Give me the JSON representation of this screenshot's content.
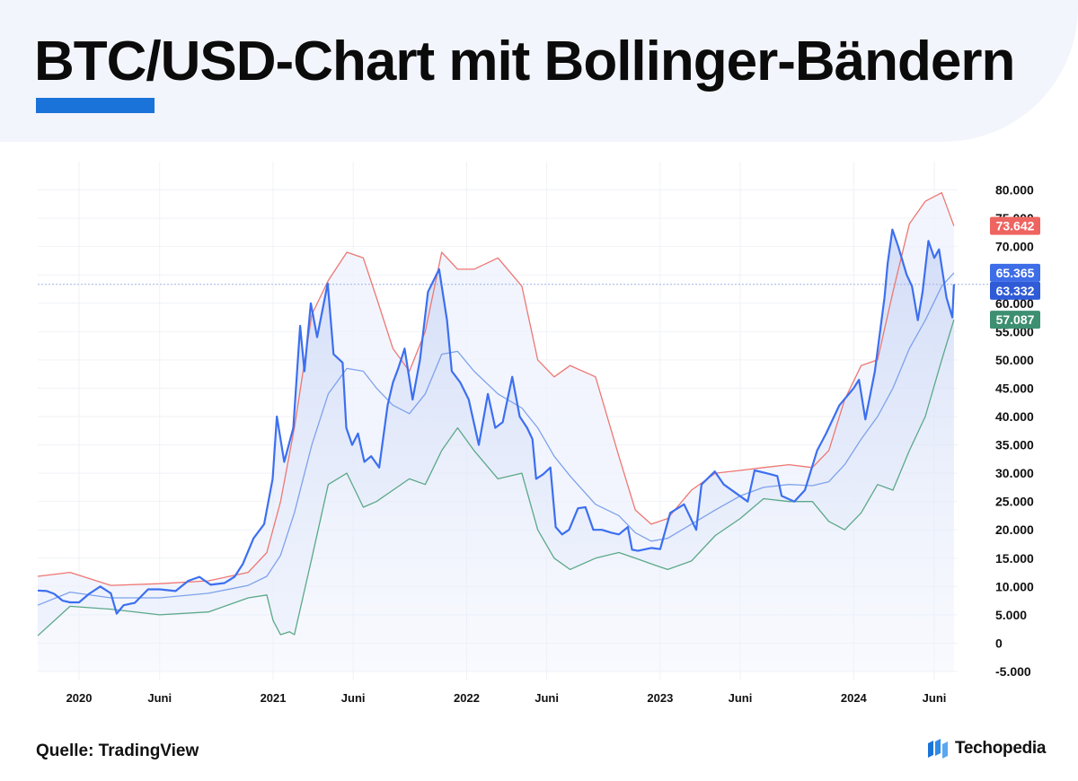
{
  "header": {
    "title": "BTC/USD-Chart mit Bollinger-Bändern",
    "accent_color": "#1a73d9"
  },
  "footer": {
    "source": "Quelle: TradingView",
    "brand": "Techopedia",
    "brand_icon": "techopedia-logo-icon"
  },
  "chart_data": {
    "type": "line",
    "ylim": [
      -5000,
      85000
    ],
    "yticks": [
      -5000,
      0,
      5000,
      10000,
      15000,
      20000,
      25000,
      30000,
      35000,
      40000,
      45000,
      50000,
      55000,
      60000,
      65000,
      70000,
      75000,
      80000
    ],
    "ytick_labels": [
      "-5.000",
      "0",
      "5.000",
      "10.000",
      "15.000",
      "20.000",
      "25.000",
      "30.000",
      "35.000",
      "40.000",
      "45.000",
      "50.000",
      "55.000",
      "60.000",
      "65.000",
      "70.000",
      "75.000",
      "80.000"
    ],
    "xlim": [
      "2019-10-15",
      "2024-07-15"
    ],
    "xticks": [
      {
        "date": "2020-01-01",
        "label": "2020"
      },
      {
        "date": "2020-06-01",
        "label": "Juni"
      },
      {
        "date": "2021-01-01",
        "label": "2021"
      },
      {
        "date": "2021-06-01",
        "label": "Juni"
      },
      {
        "date": "2022-01-01",
        "label": "2022"
      },
      {
        "date": "2022-06-01",
        "label": "Juni"
      },
      {
        "date": "2023-01-01",
        "label": "2023"
      },
      {
        "date": "2023-06-01",
        "label": "Juni"
      },
      {
        "date": "2024-01-01",
        "label": "2024"
      },
      {
        "date": "2024-06-01",
        "label": "Juni"
      }
    ],
    "grid": true,
    "series": [
      {
        "key": "upper",
        "color": "#ee7773",
        "x": [
          "2019-10-15",
          "2019-12-15",
          "2020-03-01",
          "2020-06-01",
          "2020-09-01",
          "2020-11-15",
          "2020-12-20",
          "2021-01-15",
          "2021-02-10",
          "2021-03-15",
          "2021-04-15",
          "2021-05-20",
          "2021-06-20",
          "2021-07-15",
          "2021-08-15",
          "2021-09-15",
          "2021-10-15",
          "2021-11-15",
          "2021-12-15",
          "2022-01-15",
          "2022-03-01",
          "2022-04-15",
          "2022-05-15",
          "2022-06-15",
          "2022-07-15",
          "2022-09-01",
          "2022-10-15",
          "2022-11-15",
          "2022-12-15",
          "2023-01-15",
          "2023-03-01",
          "2023-04-15",
          "2023-06-01",
          "2023-07-15",
          "2023-09-01",
          "2023-10-15",
          "2023-11-15",
          "2023-12-15",
          "2024-01-15",
          "2024-02-15",
          "2024-03-15",
          "2024-04-15",
          "2024-05-15",
          "2024-06-15",
          "2024-07-08"
        ],
        "y": [
          11800,
          12500,
          10200,
          10500,
          11000,
          12500,
          16000,
          25000,
          38000,
          58000,
          64000,
          69000,
          68000,
          61000,
          52000,
          48000,
          55000,
          69000,
          66000,
          66000,
          68000,
          63000,
          50000,
          47000,
          49000,
          47000,
          33000,
          23500,
          21000,
          22000,
          27000,
          30000,
          30500,
          31000,
          31500,
          31000,
          34000,
          43000,
          49000,
          50000,
          62000,
          74000,
          78000,
          79500,
          73642
        ]
      },
      {
        "key": "middle",
        "color": "#7ea2ec",
        "x": [
          "2019-10-15",
          "2019-12-15",
          "2020-03-01",
          "2020-06-01",
          "2020-09-01",
          "2020-11-15",
          "2020-12-20",
          "2021-01-15",
          "2021-02-10",
          "2021-03-15",
          "2021-04-15",
          "2021-05-20",
          "2021-06-20",
          "2021-07-15",
          "2021-08-15",
          "2021-09-15",
          "2021-10-15",
          "2021-11-15",
          "2021-12-15",
          "2022-01-15",
          "2022-03-01",
          "2022-04-15",
          "2022-05-15",
          "2022-06-15",
          "2022-07-15",
          "2022-09-01",
          "2022-10-15",
          "2022-11-15",
          "2022-12-15",
          "2023-01-15",
          "2023-03-01",
          "2023-04-15",
          "2023-06-01",
          "2023-07-15",
          "2023-09-01",
          "2023-10-15",
          "2023-11-15",
          "2023-12-15",
          "2024-01-15",
          "2024-02-15",
          "2024-03-15",
          "2024-04-15",
          "2024-05-15",
          "2024-06-15",
          "2024-07-08"
        ],
        "y": [
          6700,
          9000,
          8000,
          8000,
          8800,
          10200,
          11800,
          15500,
          23000,
          35000,
          44000,
          48500,
          48000,
          45000,
          42000,
          40500,
          44000,
          51000,
          51500,
          48000,
          44000,
          41500,
          38000,
          33000,
          29500,
          24500,
          22500,
          19500,
          18000,
          18500,
          21000,
          23500,
          26000,
          27500,
          28000,
          27800,
          28500,
          31500,
          36000,
          40000,
          45000,
          52000,
          57000,
          63000,
          65365
        ]
      },
      {
        "key": "lower",
        "color": "#5ba888",
        "x": [
          "2019-10-15",
          "2019-12-15",
          "2020-03-01",
          "2020-06-01",
          "2020-09-01",
          "2020-11-15",
          "2020-12-20",
          "2021-01-01",
          "2021-01-15",
          "2021-02-01",
          "2021-02-10",
          "2021-03-15",
          "2021-04-15",
          "2021-05-20",
          "2021-06-20",
          "2021-07-15",
          "2021-08-15",
          "2021-09-15",
          "2021-10-15",
          "2021-11-15",
          "2021-12-15",
          "2022-01-15",
          "2022-03-01",
          "2022-04-15",
          "2022-05-15",
          "2022-06-15",
          "2022-07-15",
          "2022-09-01",
          "2022-10-15",
          "2022-11-15",
          "2022-12-15",
          "2023-01-15",
          "2023-03-01",
          "2023-04-15",
          "2023-06-01",
          "2023-07-15",
          "2023-09-01",
          "2023-10-15",
          "2023-11-15",
          "2023-12-15",
          "2024-01-15",
          "2024-02-15",
          "2024-03-15",
          "2024-04-15",
          "2024-05-15",
          "2024-06-15",
          "2024-07-08"
        ],
        "y": [
          1300,
          6500,
          6000,
          5000,
          5500,
          8000,
          8500,
          4000,
          1500,
          2000,
          1500,
          15000,
          28000,
          30000,
          24000,
          25000,
          27000,
          29000,
          28000,
          34000,
          38000,
          34000,
          29000,
          30000,
          20000,
          15000,
          13000,
          15000,
          16000,
          15000,
          14000,
          13000,
          14500,
          19000,
          22000,
          25500,
          25000,
          25000,
          21500,
          20000,
          23000,
          28000,
          27000,
          34000,
          40000,
          50000,
          57087
        ]
      },
      {
        "key": "price",
        "color": "#3c6ff0",
        "x": [
          "2019-10-15",
          "2019-11-01",
          "2019-11-15",
          "2019-12-01",
          "2019-12-15",
          "2020-01-01",
          "2020-01-20",
          "2020-02-10",
          "2020-03-01",
          "2020-03-12",
          "2020-03-25",
          "2020-04-15",
          "2020-05-10",
          "2020-06-01",
          "2020-07-01",
          "2020-07-25",
          "2020-08-15",
          "2020-09-05",
          "2020-10-01",
          "2020-10-20",
          "2020-11-05",
          "2020-11-25",
          "2020-12-15",
          "2020-12-31",
          "2021-01-08",
          "2021-01-22",
          "2021-02-08",
          "2021-02-21",
          "2021-03-01",
          "2021-03-13",
          "2021-03-25",
          "2021-04-14",
          "2021-04-25",
          "2021-05-12",
          "2021-05-19",
          "2021-05-30",
          "2021-06-10",
          "2021-06-22",
          "2021-07-05",
          "2021-07-20",
          "2021-08-05",
          "2021-08-15",
          "2021-08-25",
          "2021-09-06",
          "2021-09-21",
          "2021-10-05",
          "2021-10-20",
          "2021-11-10",
          "2021-11-25",
          "2021-12-04",
          "2021-12-20",
          "2022-01-05",
          "2022-01-24",
          "2022-02-10",
          "2022-02-24",
          "2022-03-10",
          "2022-03-28",
          "2022-04-11",
          "2022-04-25",
          "2022-05-05",
          "2022-05-12",
          "2022-05-25",
          "2022-06-08",
          "2022-06-18",
          "2022-06-30",
          "2022-07-13",
          "2022-07-30",
          "2022-08-13",
          "2022-08-28",
          "2022-09-13",
          "2022-10-01",
          "2022-10-15",
          "2022-11-01",
          "2022-11-09",
          "2022-11-20",
          "2022-12-15",
          "2023-01-01",
          "2023-01-20",
          "2023-02-15",
          "2023-03-10",
          "2023-03-20",
          "2023-04-14",
          "2023-05-01",
          "2023-06-15",
          "2023-06-28",
          "2023-07-20",
          "2023-08-10",
          "2023-08-18",
          "2023-09-11",
          "2023-10-01",
          "2023-10-24",
          "2023-11-10",
          "2023-12-05",
          "2024-01-01",
          "2024-01-11",
          "2024-01-23",
          "2024-02-10",
          "2024-02-28",
          "2024-03-05",
          "2024-03-14",
          "2024-03-25",
          "2024-04-10",
          "2024-04-20",
          "2024-05-01",
          "2024-05-10",
          "2024-05-21",
          "2024-06-01",
          "2024-06-10",
          "2024-06-24",
          "2024-07-05",
          "2024-07-08"
        ],
        "y": [
          9300,
          9200,
          8700,
          7500,
          7200,
          7200,
          8700,
          10000,
          8800,
          5200,
          6700,
          7100,
          9500,
          9500,
          9200,
          11000,
          11700,
          10300,
          10600,
          11700,
          14000,
          18500,
          21000,
          29000,
          40000,
          32000,
          38000,
          56000,
          48000,
          60000,
          54000,
          63500,
          51000,
          49500,
          38000,
          35000,
          37000,
          32000,
          33000,
          31000,
          42000,
          46000,
          48500,
          52000,
          43000,
          50000,
          62000,
          66000,
          57000,
          48000,
          46000,
          43000,
          35000,
          44000,
          38000,
          39000,
          47000,
          40000,
          38000,
          36000,
          29000,
          29800,
          31000,
          20500,
          19200,
          20000,
          23800,
          24000,
          20000,
          20000,
          19500,
          19200,
          20500,
          16500,
          16300,
          16800,
          16600,
          23000,
          24500,
          20000,
          28000,
          30300,
          28000,
          25000,
          30500,
          30000,
          29500,
          26000,
          25000,
          27000,
          34000,
          37000,
          42000,
          45000,
          46500,
          39500,
          48000,
          61000,
          67000,
          73000,
          70000,
          65000,
          63000,
          57000,
          62000,
          71000,
          68000,
          69500,
          61000,
          57500,
          63332
        ]
      }
    ],
    "reference_line": {
      "value": 63332,
      "color": "#9fb2e8"
    },
    "value_tags": [
      {
        "key": "upper",
        "text": "73.642",
        "value": 73642,
        "color": "#ee6460"
      },
      {
        "key": "middle",
        "text": "65.365",
        "value": 65365,
        "color": "#3e6de8"
      },
      {
        "key": "price",
        "text": "63.332",
        "value": 63332,
        "color": "#2f5bd6"
      },
      {
        "key": "lower",
        "text": "57.087",
        "value": 57087,
        "color": "#3d8f72"
      }
    ]
  }
}
